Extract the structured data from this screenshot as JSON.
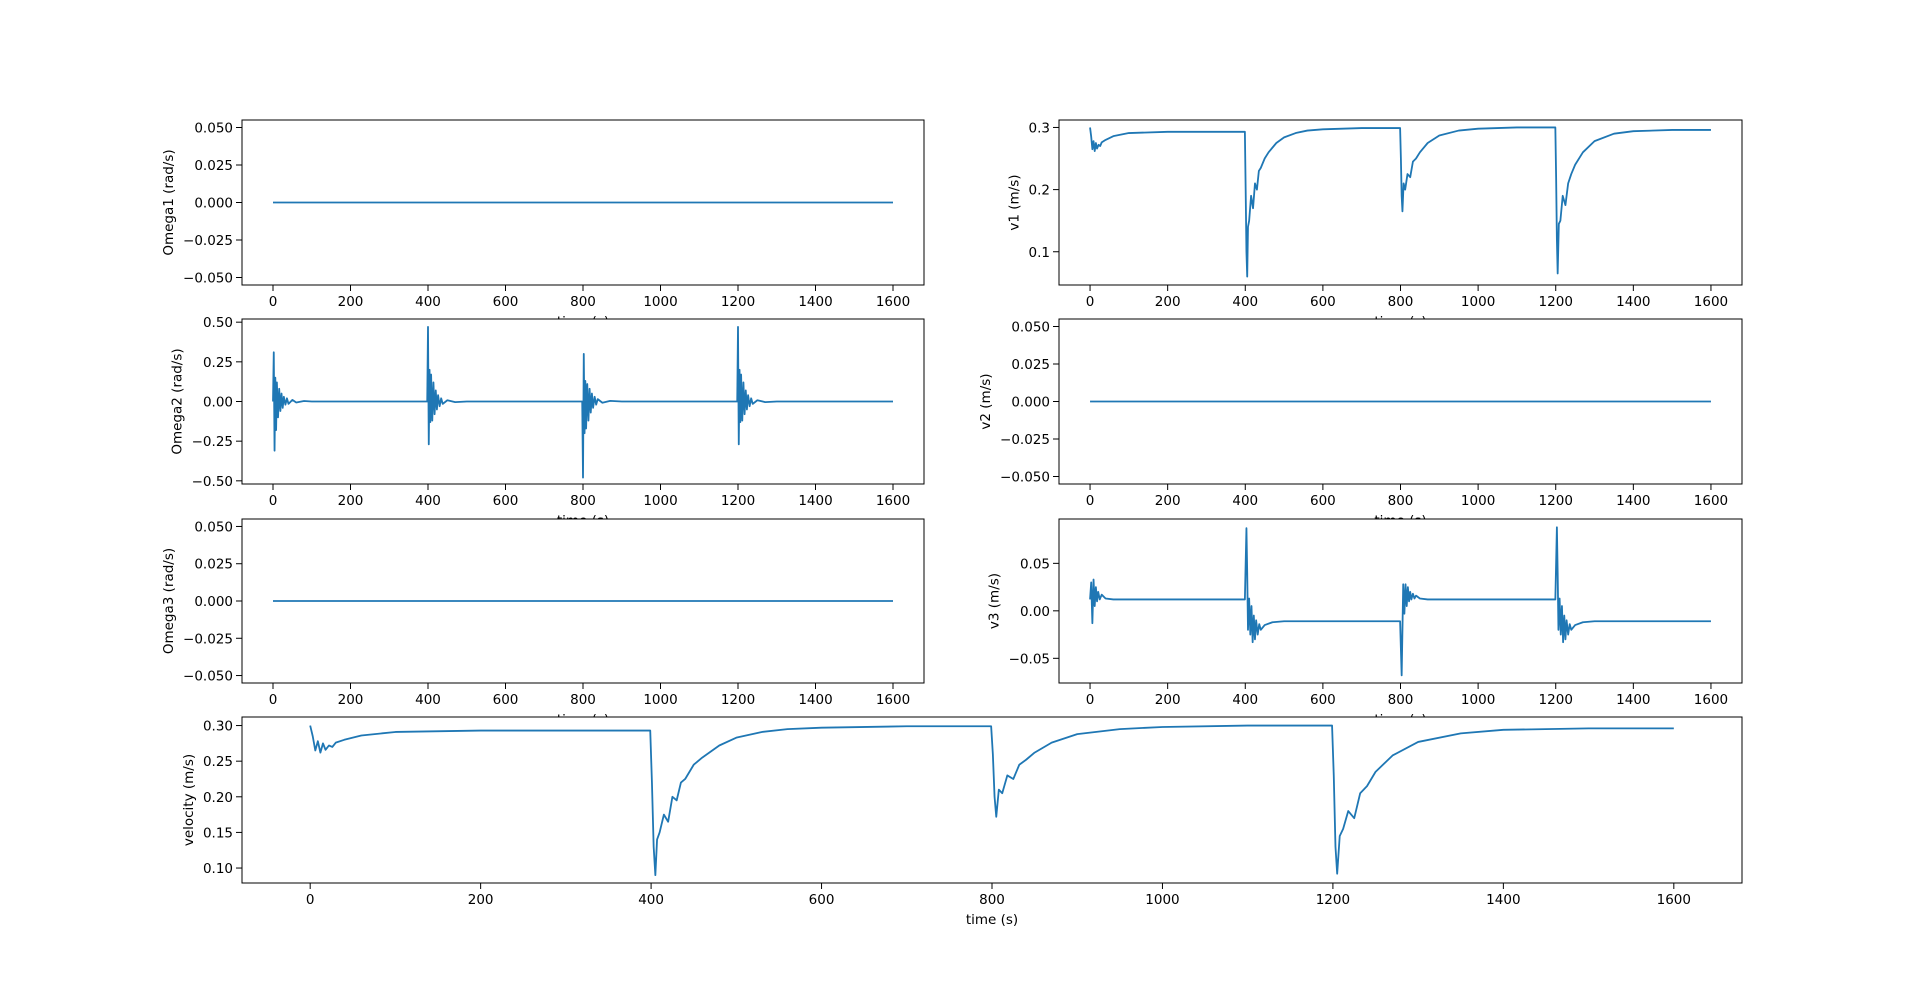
{
  "chart_data": [
    {
      "type": "line",
      "ylabel": "Omega1 (rad/s)",
      "xlabel": "time (s)",
      "color": "#1f77b4",
      "x": [
        0,
        1600
      ],
      "values": [
        0,
        0
      ],
      "xlim": [
        -80,
        1680
      ],
      "xticks": [
        0,
        200,
        400,
        600,
        800,
        1000,
        1200,
        1400,
        1600
      ],
      "ylim": [
        -0.055,
        0.055
      ],
      "yticks": [
        {
          "value": -0.05,
          "label": "−0.050"
        },
        {
          "value": -0.025,
          "label": "−0.025"
        },
        {
          "value": 0,
          "label": "0.000"
        },
        {
          "value": 0.025,
          "label": "0.025"
        },
        {
          "value": 0.05,
          "label": "0.050"
        }
      ]
    },
    {
      "type": "line",
      "ylabel": "v1 (m/s)",
      "xlabel": "time (s)",
      "color": "#1f77b4",
      "x": [
        0,
        3,
        6,
        9,
        12,
        15,
        18,
        22,
        26,
        30,
        40,
        60,
        100,
        200,
        300,
        399,
        401,
        403,
        405,
        407,
        410,
        415,
        420,
        425,
        430,
        435,
        440,
        450,
        460,
        480,
        500,
        530,
        560,
        600,
        700,
        799,
        801,
        803,
        805,
        808,
        812,
        818,
        825,
        832,
        840,
        850,
        870,
        900,
        950,
        1000,
        1100,
        1199,
        1201,
        1203,
        1205,
        1208,
        1212,
        1218,
        1225,
        1232,
        1240,
        1250,
        1270,
        1300,
        1350,
        1400,
        1500,
        1600
      ],
      "values": [
        0.3,
        0.285,
        0.265,
        0.278,
        0.262,
        0.275,
        0.266,
        0.272,
        0.27,
        0.276,
        0.28,
        0.286,
        0.291,
        0.293,
        0.293,
        0.293,
        0.2,
        0.1,
        0.06,
        0.14,
        0.15,
        0.19,
        0.17,
        0.21,
        0.2,
        0.23,
        0.235,
        0.25,
        0.26,
        0.275,
        0.284,
        0.291,
        0.295,
        0.297,
        0.299,
        0.299,
        0.25,
        0.19,
        0.165,
        0.21,
        0.2,
        0.225,
        0.22,
        0.245,
        0.25,
        0.26,
        0.275,
        0.287,
        0.295,
        0.298,
        0.3,
        0.3,
        0.22,
        0.12,
        0.065,
        0.145,
        0.15,
        0.19,
        0.175,
        0.21,
        0.225,
        0.24,
        0.26,
        0.278,
        0.29,
        0.294,
        0.296,
        0.296
      ],
      "xlim": [
        -80,
        1680
      ],
      "xticks": [
        0,
        200,
        400,
        600,
        800,
        1000,
        1200,
        1400,
        1600
      ],
      "ylim": [
        0.0465,
        0.312
      ],
      "yticks": [
        0.1,
        0.2,
        0.3
      ]
    },
    {
      "type": "line",
      "ylabel": "Omega2 (rad/s)",
      "xlabel": "time (s)",
      "color": "#1f77b4",
      "x": [
        0,
        2,
        4,
        6,
        8,
        10,
        13,
        16,
        19,
        22,
        25,
        28,
        32,
        36,
        40,
        50,
        60,
        80,
        100,
        398,
        400,
        402,
        404,
        406,
        408,
        411,
        414,
        417,
        420,
        423,
        426,
        430,
        434,
        438,
        450,
        470,
        500,
        798,
        800,
        802,
        804,
        806,
        808,
        811,
        814,
        817,
        820,
        823,
        826,
        830,
        834,
        838,
        850,
        870,
        900,
        1198,
        1200,
        1202,
        1204,
        1206,
        1208,
        1211,
        1214,
        1217,
        1220,
        1223,
        1226,
        1230,
        1234,
        1238,
        1250,
        1270,
        1300,
        1600
      ],
      "values": [
        0,
        0.31,
        -0.31,
        0.15,
        -0.18,
        0.12,
        -0.1,
        0.08,
        -0.06,
        0.05,
        -0.04,
        0.03,
        -0.02,
        0.02,
        -0.015,
        0.01,
        -0.006,
        0.003,
        0,
        0,
        0.47,
        -0.27,
        0.2,
        -0.13,
        0.17,
        -0.12,
        0.12,
        -0.08,
        0.07,
        -0.05,
        0.04,
        -0.03,
        0.02,
        -0.015,
        0.008,
        -0.004,
        0,
        0,
        -0.48,
        0.3,
        -0.2,
        0.13,
        -0.17,
        0.11,
        -0.12,
        0.08,
        -0.07,
        0.05,
        -0.04,
        0.03,
        -0.02,
        0.015,
        -0.008,
        0.004,
        0,
        0,
        0.47,
        -0.27,
        0.2,
        -0.13,
        0.17,
        -0.12,
        0.12,
        -0.08,
        0.07,
        -0.05,
        0.04,
        -0.03,
        0.02,
        -0.015,
        0.008,
        -0.004,
        0,
        0
      ],
      "xlim": [
        -80,
        1680
      ],
      "xticks": [
        0,
        200,
        400,
        600,
        800,
        1000,
        1200,
        1400,
        1600
      ],
      "ylim": [
        -0.52,
        0.52
      ],
      "yticks": [
        {
          "value": -0.5,
          "label": "−0.50"
        },
        {
          "value": -0.25,
          "label": "−0.25"
        },
        {
          "value": 0,
          "label": "0.00"
        },
        {
          "value": 0.25,
          "label": "0.25"
        },
        {
          "value": 0.5,
          "label": "0.50"
        }
      ]
    },
    {
      "type": "line",
      "ylabel": "v2 (m/s)",
      "xlabel": "time (s)",
      "color": "#1f77b4",
      "x": [
        0,
        1600
      ],
      "values": [
        0,
        0
      ],
      "xlim": [
        -80,
        1680
      ],
      "xticks": [
        0,
        200,
        400,
        600,
        800,
        1000,
        1200,
        1400,
        1600
      ],
      "ylim": [
        -0.055,
        0.055
      ],
      "yticks": [
        {
          "value": -0.05,
          "label": "−0.050"
        },
        {
          "value": -0.025,
          "label": "−0.025"
        },
        {
          "value": 0,
          "label": "0.000"
        },
        {
          "value": 0.025,
          "label": "0.025"
        },
        {
          "value": 0.05,
          "label": "0.050"
        }
      ]
    },
    {
      "type": "line",
      "ylabel": "Omega3 (rad/s)",
      "xlabel": "time (s)",
      "color": "#1f77b4",
      "x": [
        0,
        1600
      ],
      "values": [
        0,
        0
      ],
      "xlim": [
        -80,
        1680
      ],
      "xticks": [
        0,
        200,
        400,
        600,
        800,
        1000,
        1200,
        1400,
        1600
      ],
      "ylim": [
        -0.055,
        0.055
      ],
      "yticks": [
        {
          "value": -0.05,
          "label": "−0.050"
        },
        {
          "value": -0.025,
          "label": "−0.025"
        },
        {
          "value": 0,
          "label": "0.000"
        },
        {
          "value": 0.025,
          "label": "0.025"
        },
        {
          "value": 0.05,
          "label": "0.050"
        }
      ]
    },
    {
      "type": "line",
      "ylabel": "v3 (m/s)",
      "xlabel": "time (s)",
      "color": "#1f77b4",
      "x": [
        0,
        3,
        6,
        9,
        12,
        15,
        18,
        21,
        25,
        30,
        40,
        60,
        100,
        399,
        401,
        403,
        405,
        407,
        410,
        413,
        416,
        419,
        422,
        425,
        428,
        432,
        436,
        440,
        450,
        470,
        500,
        600,
        799,
        801,
        803,
        805,
        807,
        810,
        813,
        816,
        819,
        822,
        825,
        828,
        832,
        836,
        840,
        850,
        870,
        900,
        1000,
        1199,
        1201,
        1203,
        1205,
        1207,
        1210,
        1213,
        1216,
        1219,
        1222,
        1225,
        1228,
        1232,
        1236,
        1240,
        1250,
        1270,
        1300,
        1400,
        1600
      ],
      "values": [
        0.012,
        0.03,
        -0.013,
        0.033,
        0.005,
        0.025,
        0.01,
        0.02,
        0.012,
        0.017,
        0.013,
        0.012,
        0.012,
        0.012,
        0.05,
        0.087,
        0.04,
        -0.02,
        0.013,
        -0.025,
        0.005,
        -0.033,
        -0.005,
        -0.03,
        -0.01,
        -0.025,
        -0.014,
        -0.02,
        -0.015,
        -0.012,
        -0.011,
        -0.011,
        -0.011,
        -0.04,
        -0.068,
        -0.02,
        0.028,
        -0.003,
        0.028,
        0.005,
        0.025,
        0.01,
        0.02,
        0.012,
        0.018,
        0.013,
        0.016,
        0.013,
        0.012,
        0.012,
        0.012,
        0.012,
        0.05,
        0.088,
        0.04,
        -0.02,
        0.013,
        -0.025,
        0.005,
        -0.033,
        -0.005,
        -0.03,
        -0.01,
        -0.025,
        -0.014,
        -0.02,
        -0.015,
        -0.012,
        -0.011,
        -0.011,
        -0.011
      ],
      "xlim": [
        -80,
        1680
      ],
      "xticks": [
        0,
        200,
        400,
        600,
        800,
        1000,
        1200,
        1400,
        1600
      ],
      "ylim": [
        -0.076,
        0.0967
      ],
      "yticks": [
        {
          "value": -0.05,
          "label": "−0.05"
        },
        {
          "value": 0,
          "label": "0.00"
        },
        {
          "value": 0.05,
          "label": "0.05"
        }
      ]
    },
    {
      "type": "line",
      "ylabel": "velocity (m/s)",
      "xlabel": "time (s)",
      "color": "#1f77b4",
      "x": [
        0,
        3,
        6,
        9,
        12,
        15,
        18,
        22,
        26,
        30,
        40,
        60,
        100,
        200,
        300,
        399,
        401,
        403,
        405,
        407,
        410,
        415,
        420,
        425,
        430,
        435,
        440,
        450,
        460,
        480,
        500,
        530,
        560,
        600,
        700,
        799,
        801,
        803,
        805,
        808,
        812,
        818,
        825,
        832,
        840,
        850,
        870,
        900,
        950,
        1000,
        1100,
        1199,
        1201,
        1203,
        1205,
        1208,
        1212,
        1218,
        1225,
        1232,
        1240,
        1250,
        1270,
        1300,
        1350,
        1400,
        1500,
        1600
      ],
      "values": [
        0.3,
        0.285,
        0.265,
        0.278,
        0.262,
        0.275,
        0.266,
        0.272,
        0.27,
        0.276,
        0.28,
        0.286,
        0.291,
        0.293,
        0.293,
        0.293,
        0.22,
        0.13,
        0.09,
        0.14,
        0.15,
        0.175,
        0.165,
        0.2,
        0.195,
        0.22,
        0.225,
        0.245,
        0.255,
        0.272,
        0.283,
        0.291,
        0.295,
        0.297,
        0.299,
        0.299,
        0.26,
        0.2,
        0.172,
        0.21,
        0.205,
        0.23,
        0.225,
        0.245,
        0.252,
        0.262,
        0.276,
        0.288,
        0.295,
        0.298,
        0.3,
        0.3,
        0.23,
        0.13,
        0.092,
        0.145,
        0.155,
        0.18,
        0.17,
        0.205,
        0.215,
        0.235,
        0.258,
        0.277,
        0.289,
        0.294,
        0.296,
        0.296
      ],
      "xlim": [
        -80,
        1680
      ],
      "xticks": [
        0,
        200,
        400,
        600,
        800,
        1000,
        1200,
        1400,
        1600
      ],
      "ylim": [
        0.079,
        0.312
      ],
      "yticks": [
        {
          "value": 0.1,
          "label": "0.10"
        },
        {
          "value": 0.15,
          "label": "0.15"
        },
        {
          "value": 0.2,
          "label": "0.20"
        },
        {
          "value": 0.25,
          "label": "0.25"
        },
        {
          "value": 0.3,
          "label": "0.30"
        }
      ]
    }
  ]
}
